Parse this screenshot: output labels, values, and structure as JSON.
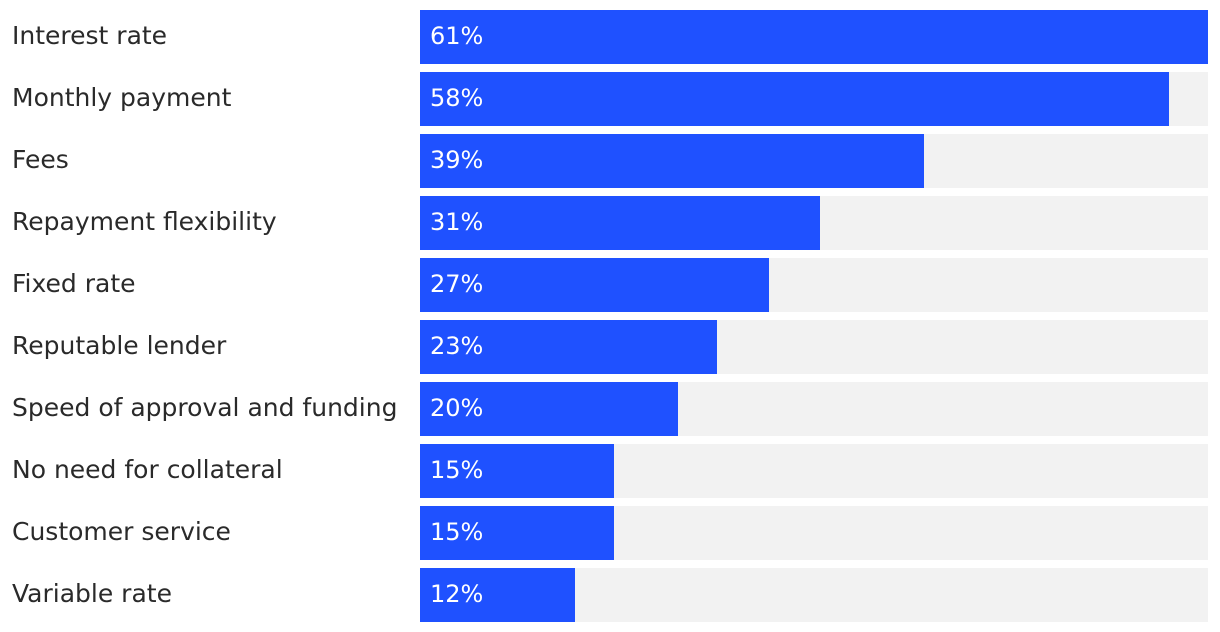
{
  "chart_data": {
    "type": "bar",
    "orientation": "horizontal",
    "title": "",
    "xlabel": "",
    "ylabel": "",
    "xlim": [
      0,
      61
    ],
    "value_suffix": "%",
    "bar_color": "#1f51ff",
    "track_color": "#f2f2f2",
    "grid": false,
    "legend": "none",
    "categories": [
      "Interest rate",
      "Monthly payment",
      "Fees",
      "Repayment flexibility",
      "Fixed rate",
      "Reputable lender",
      "Speed of approval and funding",
      "No need for collateral",
      "Customer service",
      "Variable rate"
    ],
    "values": [
      61,
      58,
      39,
      31,
      27,
      23,
      20,
      15,
      15,
      12
    ],
    "value_labels": [
      "61%",
      "58%",
      "39%",
      "31%",
      "27%",
      "23%",
      "20%",
      "15%",
      "15%",
      "12%"
    ]
  }
}
